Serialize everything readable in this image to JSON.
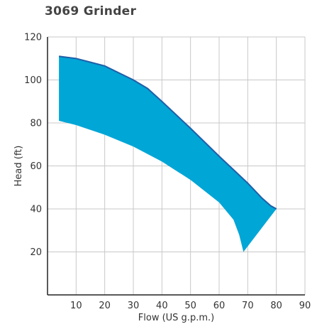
{
  "chart_data": {
    "type": "area",
    "title": "3069 Grinder",
    "xlabel": "Flow (US g.p.m.)",
    "ylabel": "Head (ft)",
    "xlim": [
      0,
      90
    ],
    "ylim": [
      0,
      120
    ],
    "xticks": [
      10,
      20,
      30,
      40,
      50,
      60,
      70,
      80,
      90
    ],
    "yticks": [
      20,
      40,
      60,
      80,
      100,
      120
    ],
    "grid": true,
    "fill_color": "#00a6d6",
    "line_color": "#1f5fa8",
    "series": [
      {
        "role": "upper",
        "x": [
          4,
          10,
          20,
          30,
          35,
          40,
          50,
          60,
          70,
          75,
          78,
          80
        ],
        "y": [
          111,
          110,
          106.5,
          100,
          96,
          90,
          77.5,
          64.5,
          52,
          45,
          41.5,
          40
        ]
      },
      {
        "role": "lower",
        "x": [
          4,
          10,
          20,
          30,
          40,
          50,
          60,
          65,
          67,
          68.5
        ],
        "y": [
          81,
          79,
          74.5,
          69,
          62,
          53.5,
          43,
          35,
          28,
          20
        ]
      }
    ]
  }
}
